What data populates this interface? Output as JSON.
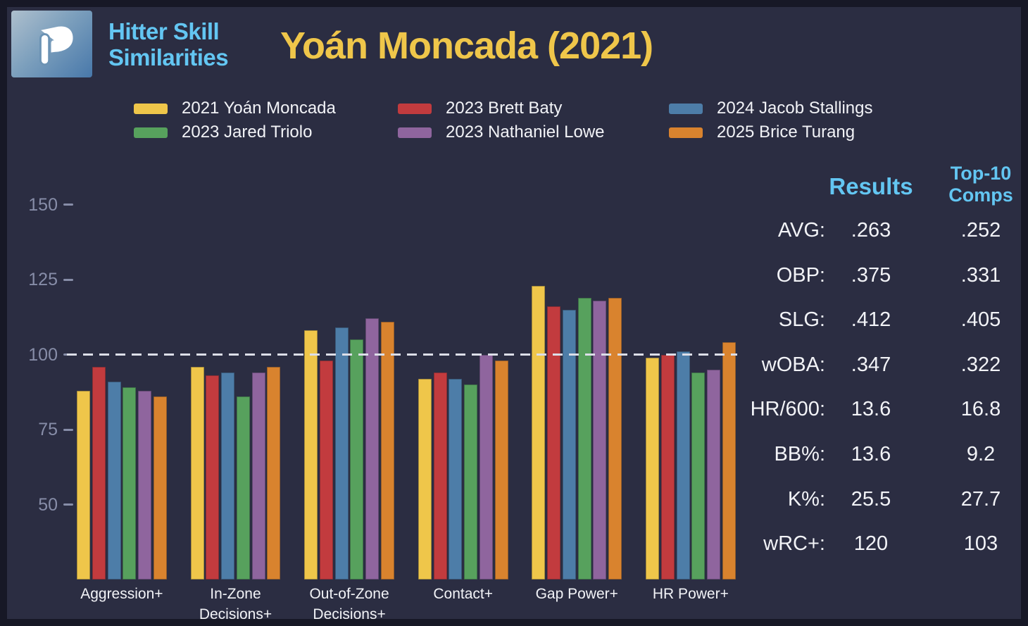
{
  "header": {
    "logo_letter": "P",
    "app_title_line1": "Hitter Skill",
    "app_title_line2": "Similarities",
    "page_title": "Yoán Moncada (2021)"
  },
  "colors": {
    "background": "#2b2d42",
    "frame": "#171826",
    "accent_blue_text": "#63c6f2",
    "title_yellow": "#efc64a",
    "axis_text": "#878da8",
    "body_text": "#f2f3f7",
    "reference_line": "#dcdee8"
  },
  "chart_data": {
    "type": "bar",
    "title": "Yoán Moncada (2021)",
    "subtitle": "Hitter Skill Similarities",
    "categories": [
      "Aggression+",
      "In-Zone Decisions+",
      "Out-of-Zone Decisions+",
      "Contact+",
      "Gap Power+",
      "HR Power+"
    ],
    "category_lines": [
      [
        "Aggression+"
      ],
      [
        "In-Zone",
        "Decisions+"
      ],
      [
        "Out-of-Zone",
        "Decisions+"
      ],
      [
        "Contact+"
      ],
      [
        "Gap Power+"
      ],
      [
        "HR Power+"
      ]
    ],
    "series": [
      {
        "name": "2021 Yoán Moncada",
        "color": "#efc64a",
        "values": [
          88,
          96,
          108,
          92,
          123,
          99
        ]
      },
      {
        "name": "2023 Brett Baty",
        "color": "#c23b3e",
        "values": [
          96,
          93,
          98,
          94,
          116,
          100
        ]
      },
      {
        "name": "2024 Jacob Stallings",
        "color": "#4d7da8",
        "values": [
          91,
          94,
          109,
          92,
          115,
          101
        ]
      },
      {
        "name": "2023 Jared Triolo",
        "color": "#57a15d",
        "values": [
          89,
          86,
          105,
          90,
          119,
          94
        ]
      },
      {
        "name": "2023 Nathaniel Lowe",
        "color": "#8f659e",
        "values": [
          88,
          94,
          112,
          100,
          118,
          95
        ]
      },
      {
        "name": "2025 Brice Turang",
        "color": "#d9832e",
        "values": [
          86,
          96,
          111,
          98,
          119,
          104
        ]
      }
    ],
    "y_ticks": [
      150,
      125,
      100,
      75,
      50
    ],
    "y_axis_min": 25,
    "reference_line": 100,
    "grid": "off",
    "legend_position": "top"
  },
  "stats_table": {
    "header_results": "Results",
    "header_comps_line1": "Top-10",
    "header_comps_line2": "Comps",
    "rows": [
      {
        "label": "AVG:",
        "result": ".263",
        "comps": ".252"
      },
      {
        "label": "OBP:",
        "result": ".375",
        "comps": ".331"
      },
      {
        "label": "SLG:",
        "result": ".412",
        "comps": ".405"
      },
      {
        "label": "wOBA:",
        "result": ".347",
        "comps": ".322"
      },
      {
        "label": "HR/600:",
        "result": "13.6",
        "comps": "16.8"
      },
      {
        "label": "BB%:",
        "result": "13.6",
        "comps": "9.2"
      },
      {
        "label": "K%:",
        "result": "25.5",
        "comps": "27.7"
      },
      {
        "label": "wRC+:",
        "result": "120",
        "comps": "103"
      }
    ]
  }
}
